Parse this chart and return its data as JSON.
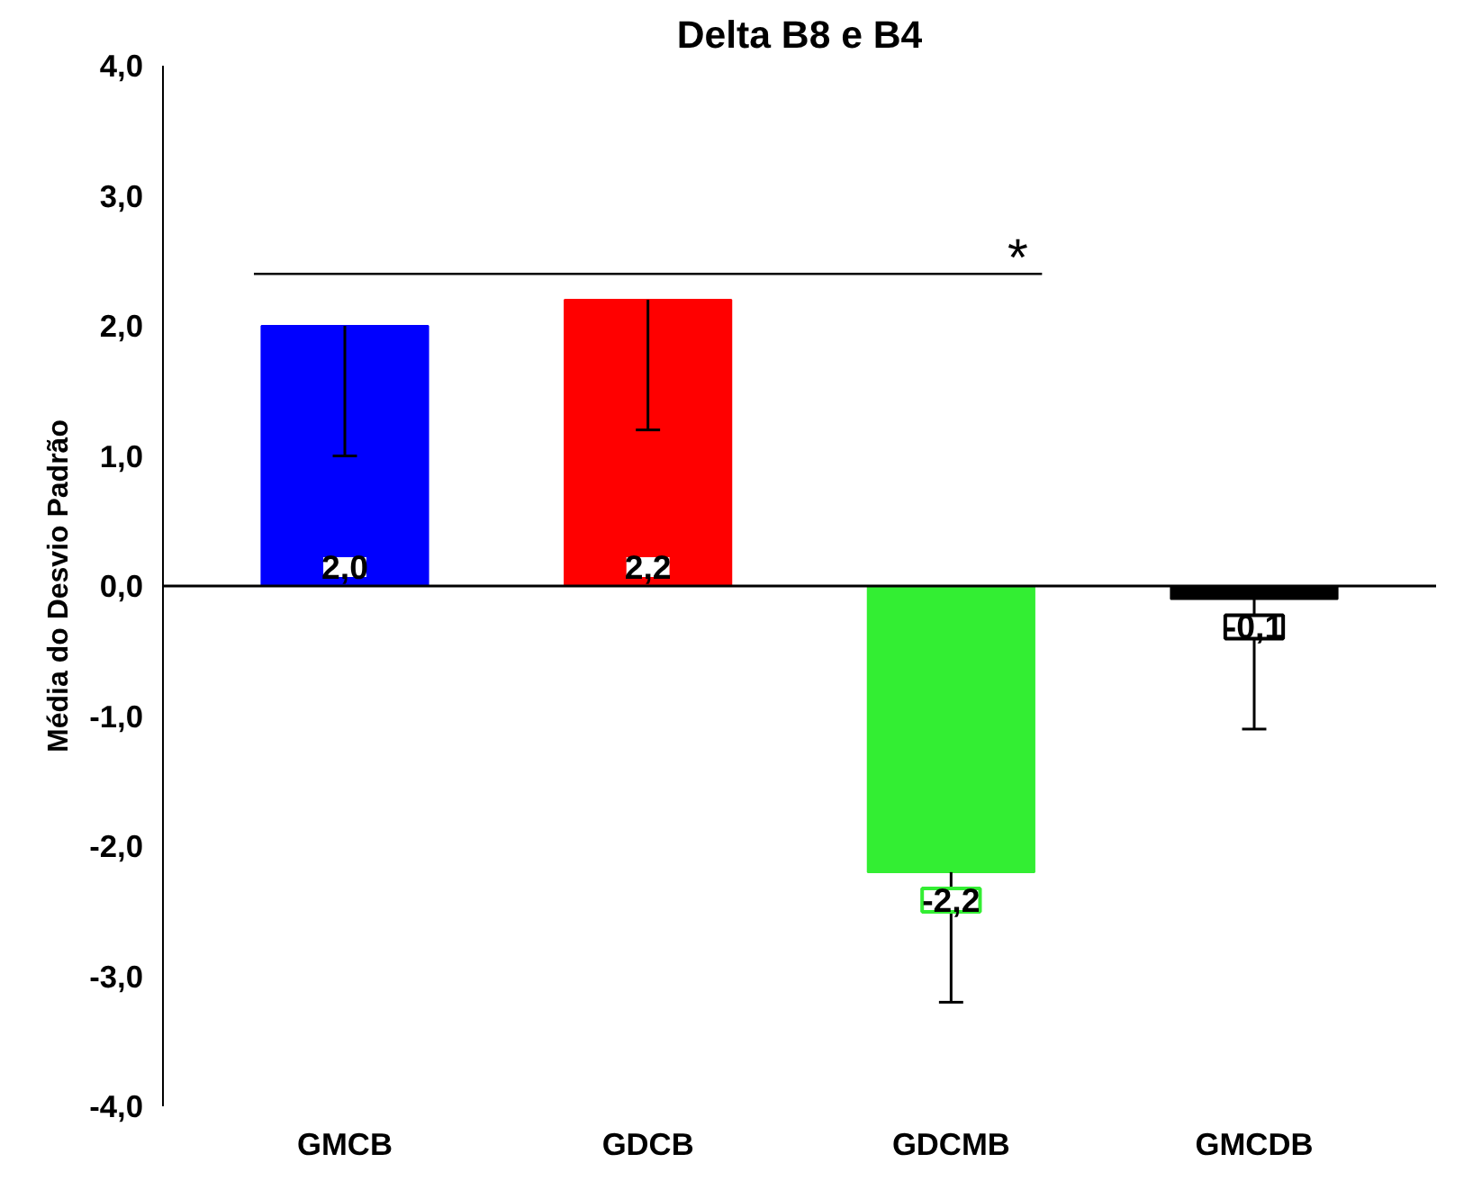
{
  "chart_data": {
    "type": "bar",
    "title": "Delta B8 e B4",
    "ylabel": "Média do Desvio Padrão",
    "categories": [
      "GMCB",
      "GDCB",
      "GDCMB",
      "GMCDB"
    ],
    "values": [
      2.0,
      2.2,
      -2.2,
      -0.1
    ],
    "colors": [
      "#0000ff",
      "#ff0000",
      "#33ee33",
      "#000000"
    ],
    "errors": [
      [
        1.0,
        2.0
      ],
      [
        1.2,
        2.2
      ],
      [
        -3.2,
        -2.2
      ],
      [
        -1.1,
        -0.1
      ]
    ],
    "value_labels": [
      "2,0",
      "2,2",
      "-2,2",
      "-0,1"
    ],
    "ylim": [
      -4.0,
      4.0
    ],
    "yticks": [
      {
        "value": -4,
        "label": "-4,0"
      },
      {
        "value": -3,
        "label": "-3,0"
      },
      {
        "value": -2,
        "label": "-2,0"
      },
      {
        "value": -1,
        "label": "-1,0"
      },
      {
        "value": 0,
        "label": "0,0"
      },
      {
        "value": 1,
        "label": "1,0"
      },
      {
        "value": 2,
        "label": "2,0"
      },
      {
        "value": 3,
        "label": "3,0"
      },
      {
        "value": 4,
        "label": "4,0"
      }
    ],
    "annotations": [
      "*"
    ]
  }
}
